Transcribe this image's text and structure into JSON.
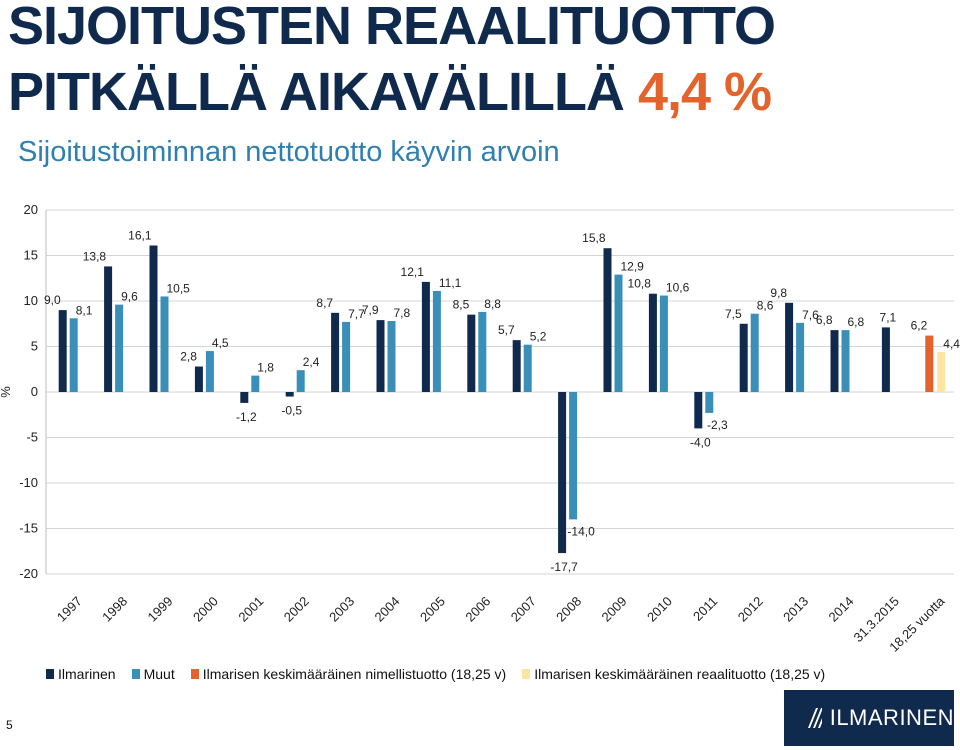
{
  "header": {
    "title_line1": "SIJOITUSTEN REAALITUOTTO",
    "title_line2_main": "PITKÄLLÄ AIKAVÄLILLÄ",
    "title_line2_accent": "4,4 %",
    "subtitle": "Sijoitustoiminnan nettotuotto käyvin arvoin"
  },
  "colors": {
    "title": "#0f2a4c",
    "accent": "#e4632c",
    "subtitle": "#2f7fb2",
    "ilmarinen": "#0f2a4c",
    "muut": "#3a8fb8",
    "nominal_avg": "#e4632c",
    "real_avg": "#fbe5a0"
  },
  "chart_data": {
    "type": "bar",
    "ylabel": "%",
    "ylim": [
      -20,
      20
    ],
    "yticks": [
      20,
      15,
      10,
      5,
      0,
      -5,
      -10,
      -15,
      -20
    ],
    "grid": true,
    "legend_position": "bottom",
    "categories": [
      "1997",
      "1998",
      "1999",
      "2000",
      "2001",
      "2002",
      "2003",
      "2004",
      "2005",
      "2006",
      "2007",
      "2008",
      "2009",
      "2010",
      "2011",
      "2012",
      "2013",
      "2014",
      "31.3.2015",
      "18,25 vuotta"
    ],
    "series": [
      {
        "name": "Ilmarinen",
        "color": "#0f2a4c",
        "values": [
          9.0,
          13.8,
          16.1,
          2.8,
          -1.2,
          -0.5,
          8.7,
          7.9,
          12.1,
          8.5,
          5.7,
          -17.7,
          15.8,
          10.8,
          -4.0,
          7.5,
          9.8,
          6.8,
          7.1,
          null
        ],
        "labels": [
          "9,0",
          "13,8",
          "16,1",
          "2,8",
          "-1,2",
          "-0,5",
          "8,7",
          "7,9",
          "12,1",
          "8,5",
          "5,7",
          "-17,7",
          "15,8",
          "10,8",
          "-4,0",
          "7,5",
          "9,8",
          "6,8",
          "7,1",
          ""
        ]
      },
      {
        "name": "Muut",
        "color": "#3a8fb8",
        "values": [
          8.1,
          9.6,
          10.5,
          4.5,
          1.8,
          2.4,
          7.7,
          7.8,
          11.1,
          8.8,
          5.2,
          -14.0,
          12.9,
          10.6,
          -2.3,
          8.6,
          7.6,
          6.8,
          null,
          null
        ],
        "labels": [
          "8,1",
          "9,6",
          "10,5",
          "4,5",
          "1,8",
          "2,4",
          "7,7",
          "7,8",
          "11,1",
          "8,8",
          "5,2",
          "-14,0",
          "12,9",
          "10,6",
          "-2,3",
          "8,6",
          "7,6",
          "6,8",
          "",
          ""
        ]
      },
      {
        "name": "Ilmarisen keskimääräinen nimellistuotto (18,25 v)",
        "color": "#e4632c",
        "values": [
          null,
          null,
          null,
          null,
          null,
          null,
          null,
          null,
          null,
          null,
          null,
          null,
          null,
          null,
          null,
          null,
          null,
          null,
          null,
          6.2
        ],
        "labels": [
          "",
          "",
          "",
          "",
          "",
          "",
          "",
          "",
          "",
          "",
          "",
          "",
          "",
          "",
          "",
          "",
          "",
          "",
          "",
          "6,2"
        ]
      },
      {
        "name": "Ilmarisen keskimääräinen reaalituotto (18,25 v)",
        "color": "#fbe5a0",
        "values": [
          null,
          null,
          null,
          null,
          null,
          null,
          null,
          null,
          null,
          null,
          null,
          null,
          null,
          null,
          null,
          null,
          null,
          null,
          null,
          4.4
        ],
        "labels": [
          "",
          "",
          "",
          "",
          "",
          "",
          "",
          "",
          "",
          "",
          "",
          "",
          "",
          "",
          "",
          "",
          "",
          "",
          "",
          "4,4"
        ]
      }
    ]
  },
  "footer": {
    "page_number": "5",
    "logo_text": "ILMARINEN"
  }
}
